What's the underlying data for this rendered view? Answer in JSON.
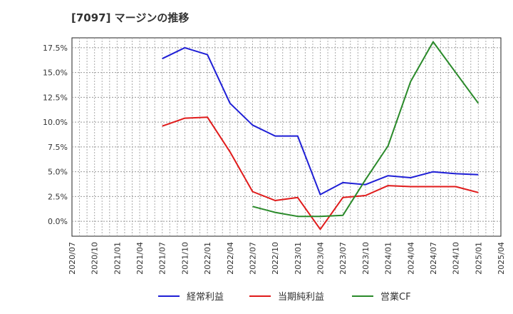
{
  "chart_data": {
    "type": "line",
    "title": "[7097]  マージンの推移",
    "x": [
      "2020/07",
      "2020/10",
      "2021/01",
      "2021/04",
      "2021/07",
      "2021/10",
      "2022/01",
      "2022/04",
      "2022/07",
      "2022/10",
      "2023/01",
      "2023/04",
      "2023/07",
      "2023/10",
      "2024/01",
      "2024/04",
      "2024/07",
      "2024/10",
      "2025/01",
      "2025/04"
    ],
    "yticks": [
      "17.5%",
      "15.0%",
      "12.5%",
      "10.0%",
      "7.5%",
      "5.0%",
      "2.5%",
      "0.0%"
    ],
    "ylim": [
      -1.5,
      18.5
    ],
    "grid": true,
    "legend_position": "bottom",
    "series": [
      {
        "name": "経常利益",
        "color": "#1f1fd6",
        "values": [
          null,
          null,
          null,
          null,
          16.4,
          17.5,
          16.8,
          11.9,
          9.7,
          8.6,
          8.6,
          2.7,
          3.9,
          3.7,
          4.6,
          4.4,
          5.0,
          4.8,
          4.7,
          null
        ]
      },
      {
        "name": "当期純利益",
        "color": "#e01b1b",
        "values": [
          null,
          null,
          null,
          null,
          9.6,
          10.4,
          10.5,
          7.0,
          3.0,
          2.1,
          2.4,
          -0.8,
          2.4,
          2.6,
          3.6,
          3.5,
          3.5,
          3.5,
          2.9,
          null
        ]
      },
      {
        "name": "営業CF",
        "color": "#2a8a2a",
        "values": [
          null,
          null,
          null,
          null,
          null,
          null,
          null,
          null,
          1.5,
          0.9,
          0.5,
          0.5,
          0.6,
          4.2,
          7.6,
          14.1,
          18.1,
          15.0,
          11.9,
          null
        ]
      }
    ]
  }
}
